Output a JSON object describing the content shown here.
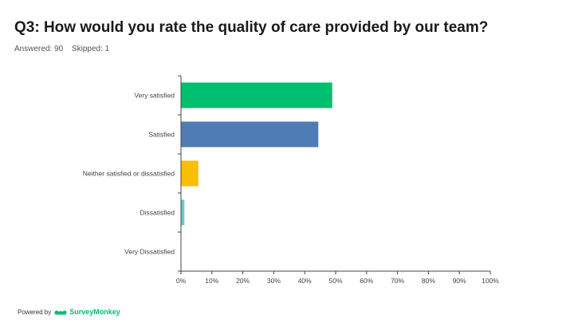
{
  "header": {
    "title": "Q3: How would you rate the quality of care provided by our team?",
    "answered": "Answered: 90",
    "skipped": "Skipped: 1"
  },
  "footer": {
    "powered_by": "Powered by",
    "brand": "SurveyMonkey",
    "logo_icon": "surveymonkey-logo-icon"
  },
  "chart_data": {
    "type": "bar",
    "orientation": "horizontal",
    "title": "",
    "xlabel": "",
    "ylabel": "",
    "categories": [
      "Very satisfied",
      "Satisfied",
      "Neither satisfied or dissatisfied",
      "Dissatisfied",
      "Very Dissatisfied"
    ],
    "values": [
      48.9,
      44.4,
      5.6,
      1.1,
      0.0
    ],
    "colors": [
      "#00bf6f",
      "#507cb6",
      "#f9be00",
      "#6bc8cd",
      "#ff8b4f"
    ],
    "xlim": [
      0,
      100
    ],
    "x_ticks": [
      "0%",
      "10%",
      "20%",
      "30%",
      "40%",
      "50%",
      "60%",
      "70%",
      "80%",
      "90%",
      "100%"
    ],
    "grid": false
  }
}
